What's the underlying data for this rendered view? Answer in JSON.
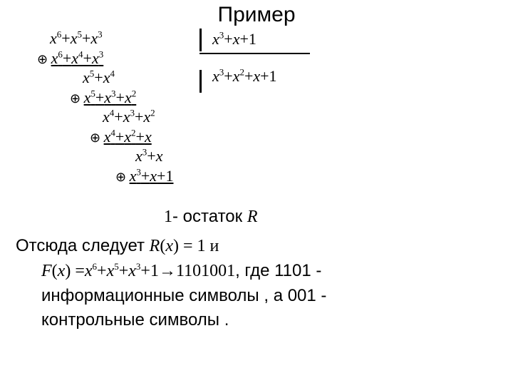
{
  "title": "Пример",
  "division": {
    "divisor": {
      "parts": [
        {
          "t": "x",
          "sup": 3
        },
        {
          "t": "+"
        },
        {
          "t": "x",
          "sup": null
        },
        {
          "t": "+1"
        }
      ]
    },
    "quotient": {
      "parts": [
        {
          "t": "x",
          "sup": 3
        },
        {
          "t": "+"
        },
        {
          "t": "x",
          "sup": 2
        },
        {
          "t": "+"
        },
        {
          "t": "x",
          "sup": null
        },
        {
          "t": "+1"
        }
      ]
    }
  },
  "steps": [
    {
      "indent": 30,
      "oplus": false,
      "under": false,
      "parts": [
        {
          "t": "x",
          "sup": 6
        },
        {
          "t": "+"
        },
        {
          "t": "x",
          "sup": 5
        },
        {
          "t": "+"
        },
        {
          "t": "x",
          "sup": 3
        }
      ]
    },
    {
      "indent": 12,
      "oplus": true,
      "under": true,
      "parts": [
        {
          "t": "x",
          "sup": 6
        },
        {
          "t": "+"
        },
        {
          "t": "x",
          "sup": 4
        },
        {
          "t": "+"
        },
        {
          "t": "x",
          "sup": 3
        }
      ]
    },
    {
      "indent": 76,
      "oplus": false,
      "under": false,
      "parts": [
        {
          "t": "x",
          "sup": 5
        },
        {
          "t": "+"
        },
        {
          "t": "x",
          "sup": 4
        }
      ]
    },
    {
      "indent": 58,
      "oplus": true,
      "under": true,
      "parts": [
        {
          "t": "x",
          "sup": 5
        },
        {
          "t": "+"
        },
        {
          "t": "x",
          "sup": 3
        },
        {
          "t": "+"
        },
        {
          "t": "x",
          "sup": 2
        }
      ]
    },
    {
      "indent": 104,
      "oplus": false,
      "under": false,
      "parts": [
        {
          "t": "x",
          "sup": 4
        },
        {
          "t": "+"
        },
        {
          "t": "x",
          "sup": 3
        },
        {
          "t": "+"
        },
        {
          "t": "x",
          "sup": 2
        }
      ]
    },
    {
      "indent": 86,
      "oplus": true,
      "under": true,
      "parts": [
        {
          "t": "x",
          "sup": 4
        },
        {
          "t": "+"
        },
        {
          "t": "x",
          "sup": 2
        },
        {
          "t": "+"
        },
        {
          "t": "x",
          "sup": null
        }
      ]
    },
    {
      "indent": 150,
      "oplus": false,
      "under": false,
      "parts": [
        {
          "t": "x",
          "sup": 3
        },
        {
          "t": "+"
        },
        {
          "t": "x",
          "sup": null
        }
      ]
    },
    {
      "indent": 122,
      "oplus": true,
      "under": true,
      "parts": [
        {
          "t": "x",
          "sup": 3
        },
        {
          "t": "+"
        },
        {
          "t": "x",
          "sup": null
        },
        {
          "t": "+1"
        }
      ]
    }
  ],
  "remainder": {
    "one": "1",
    "dash": "- ",
    "label": "остаток ",
    "sym": "R"
  },
  "paragraph": {
    "line1_a": "Отсюда следует ",
    "line1_b": "R",
    "line1_c": "(",
    "line1_d": "x",
    "line1_e": ") = 1   и",
    "line2_a": "F",
    "line2_b": "(",
    "line2_c": "x",
    "line2_d": ") =",
    "line2_poly": [
      {
        "t": "x",
        "sup": 6
      },
      {
        "t": "+"
      },
      {
        "t": "x",
        "sup": 5
      },
      {
        "t": "+"
      },
      {
        "t": "x",
        "sup": 3
      },
      {
        "t": "+1"
      }
    ],
    "line2_arrow": "→1101001",
    "line2_e": ", где 1101 -",
    "line3": "информационные символы , а 001 -",
    "line4": "контрольные символы ."
  },
  "style": {
    "bg": "#ffffff",
    "fg": "#000000",
    "title_fontsize": 30,
    "serif_fontsize": 22,
    "para_fontsize": 24
  }
}
